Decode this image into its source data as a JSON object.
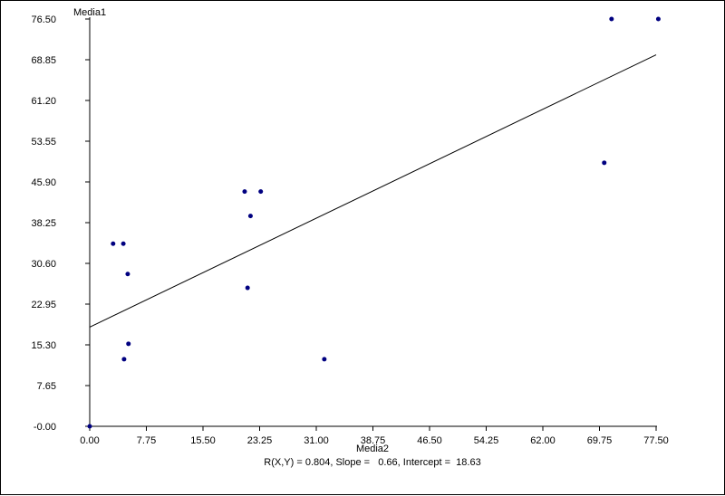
{
  "chart_data": {
    "type": "scatter",
    "title": "",
    "xlabel": "Media2",
    "ylabel": "Media1",
    "xlim": [
      0,
      77.5
    ],
    "ylim": [
      0,
      76.5
    ],
    "x_ticks": [
      "0.00",
      "7.75",
      "15.50",
      "23.25",
      "31.00",
      "38.75",
      "46.50",
      "54.25",
      "62.00",
      "69.75",
      "77.50"
    ],
    "y_ticks": [
      "-0.00",
      "7.65",
      "15.30",
      "22.95",
      "30.60",
      "38.25",
      "45.90",
      "53.55",
      "61.20",
      "68.85",
      "76.50"
    ],
    "grid": false,
    "points": [
      {
        "x": 0.0,
        "y": 0.0
      },
      {
        "x": 3.2,
        "y": 34.3
      },
      {
        "x": 4.6,
        "y": 34.3
      },
      {
        "x": 5.2,
        "y": 28.6
      },
      {
        "x": 5.3,
        "y": 15.5
      },
      {
        "x": 4.7,
        "y": 12.6
      },
      {
        "x": 21.2,
        "y": 44.1
      },
      {
        "x": 23.4,
        "y": 44.1
      },
      {
        "x": 22.0,
        "y": 39.5
      },
      {
        "x": 21.6,
        "y": 26.0
      },
      {
        "x": 32.1,
        "y": 12.6
      },
      {
        "x": 70.4,
        "y": 49.5
      },
      {
        "x": 71.4,
        "y": 76.5
      },
      {
        "x": 77.8,
        "y": 76.5
      }
    ],
    "regression": {
      "slope": 0.66,
      "intercept": 18.63,
      "r": 0.804
    },
    "stats_text": "R(X,Y) = 0.804, Slope =   0.66, Intercept =  18.63",
    "colors": {
      "points": "#000080",
      "line": "#000000",
      "axes": "#000000"
    }
  }
}
